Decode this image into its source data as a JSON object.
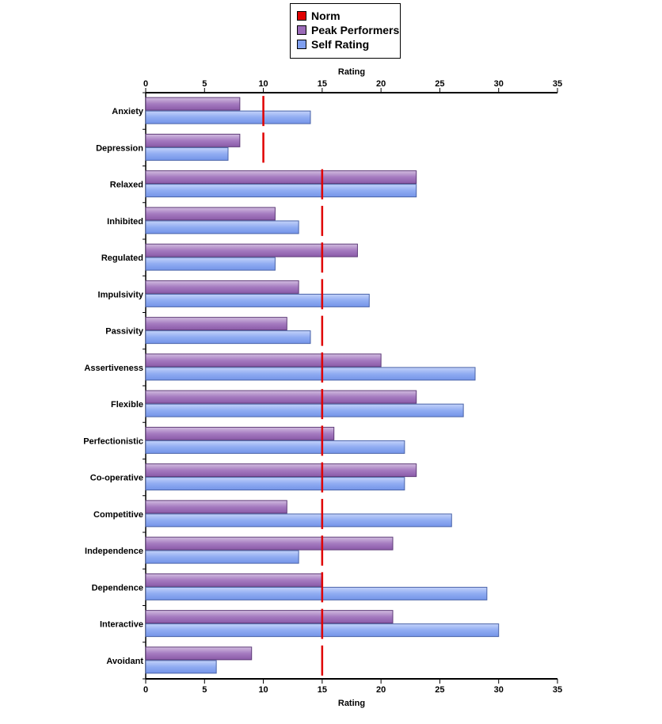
{
  "chart_data": {
    "type": "bar",
    "orientation": "horizontal",
    "categories": [
      "Anxiety",
      "Depression",
      "Relaxed",
      "Inhibited",
      "Regulated",
      "Impulsivity",
      "Passivity",
      "Assertiveness",
      "Flexible",
      "Perfectionistic",
      "Co-operative",
      "Competitive",
      "Independence",
      "Dependence",
      "Interactive",
      "Avoidant"
    ],
    "series": [
      {
        "name": "Peak Performers",
        "color": "#9b6bb8",
        "values": [
          8,
          8,
          23,
          11,
          18,
          13,
          12,
          20,
          23,
          16,
          23,
          12,
          21,
          15,
          21,
          9
        ]
      },
      {
        "name": "Self Rating",
        "color": "#7f9ff0",
        "values": [
          14,
          7,
          23,
          13,
          11,
          19,
          14,
          28,
          27,
          22,
          22,
          26,
          13,
          29,
          30,
          6
        ]
      }
    ],
    "norm": {
      "name": "Norm",
      "color": "#e00000",
      "values": [
        10,
        10,
        15,
        15,
        15,
        15,
        15,
        15,
        15,
        15,
        15,
        15,
        15,
        15,
        15,
        15
      ]
    },
    "xlabel_top": "Rating",
    "xlabel_bottom": "Rating",
    "xlim": [
      0,
      35
    ],
    "xticks": [
      0,
      5,
      10,
      15,
      20,
      25,
      30,
      35
    ],
    "legend_placement": "top-center"
  },
  "legend": [
    {
      "label": "Norm",
      "color": "#e00000"
    },
    {
      "label": "Peak Performers",
      "color": "#9b6bb8"
    },
    {
      "label": "Self Rating",
      "color": "#7f9ff0"
    }
  ]
}
